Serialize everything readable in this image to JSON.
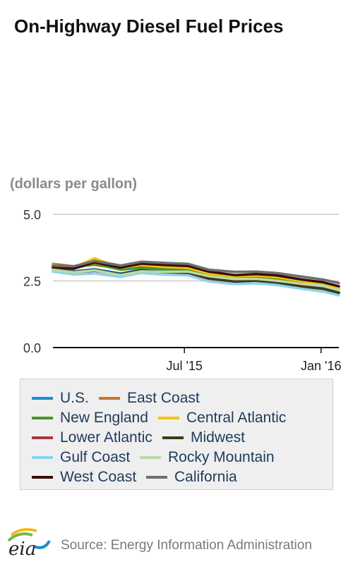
{
  "page": {
    "title": "On-Highway Diesel Fuel Prices",
    "unit_label": "(dollars per gallon)",
    "source": "Source: Energy Information Administration",
    "logo_text": "eia"
  },
  "chart_data": {
    "type": "line",
    "title": "On-Highway Diesel Fuel Prices",
    "ylabel": "(dollars per gallon)",
    "xlabel": "",
    "ylim": [
      0,
      5
    ],
    "yticks": [
      0,
      2.5,
      5
    ],
    "ytick_labels": [
      "0.0",
      "2.5",
      "5.0"
    ],
    "xticks": [
      {
        "date": "2015-07-01",
        "label": "Jul '15"
      },
      {
        "date": "2016-01-01",
        "label": "Jan '16"
      }
    ],
    "xrange": [
      "2015-01-05",
      "2016-01-25"
    ],
    "grid": "horizontal",
    "legend_position": "bottom",
    "x": [
      "2015-01-05",
      "2015-02-02",
      "2015-03-02",
      "2015-04-06",
      "2015-05-04",
      "2015-06-01",
      "2015-07-06",
      "2015-08-03",
      "2015-09-07",
      "2015-10-05",
      "2015-11-02",
      "2015-12-07",
      "2016-01-04",
      "2016-01-25"
    ],
    "series": [
      {
        "name": "U.S.",
        "color": "#1a8dd0",
        "values": [
          2.99,
          2.86,
          2.94,
          2.78,
          2.92,
          2.85,
          2.82,
          2.61,
          2.49,
          2.52,
          2.46,
          2.3,
          2.22,
          2.07
        ]
      },
      {
        "name": "East Coast",
        "color": "#c8742b",
        "values": [
          3.14,
          3.05,
          3.1,
          2.97,
          3.05,
          2.98,
          2.94,
          2.74,
          2.63,
          2.66,
          2.6,
          2.45,
          2.33,
          2.18
        ]
      },
      {
        "name": "New England",
        "color": "#48942a",
        "values": [
          3.06,
          2.98,
          3.15,
          2.92,
          3.0,
          2.94,
          2.9,
          2.7,
          2.6,
          2.63,
          2.58,
          2.45,
          2.36,
          2.23
        ]
      },
      {
        "name": "Central Atlantic",
        "color": "#f5c400",
        "values": [
          3.1,
          3.0,
          3.35,
          2.99,
          3.1,
          3.03,
          2.99,
          2.78,
          2.67,
          2.7,
          2.64,
          2.49,
          2.38,
          2.24
        ]
      },
      {
        "name": "Lower Atlantic",
        "color": "#a8353f",
        "values": [
          2.92,
          2.8,
          2.88,
          2.74,
          2.88,
          2.82,
          2.78,
          2.58,
          2.47,
          2.51,
          2.44,
          2.3,
          2.21,
          2.06
        ]
      },
      {
        "name": "Midwest",
        "color": "#3e3a17",
        "values": [
          2.96,
          2.84,
          2.92,
          2.75,
          2.9,
          2.83,
          2.8,
          2.6,
          2.48,
          2.51,
          2.44,
          2.28,
          2.2,
          2.05
        ]
      },
      {
        "name": "Gulf Coast",
        "color": "#8ad4f0",
        "values": [
          2.85,
          2.74,
          2.78,
          2.65,
          2.8,
          2.74,
          2.71,
          2.48,
          2.38,
          2.41,
          2.35,
          2.2,
          2.1,
          1.96
        ]
      },
      {
        "name": "Rocky Mountain",
        "color": "#bcd9a6",
        "values": [
          2.92,
          2.82,
          2.9,
          2.72,
          2.86,
          2.84,
          2.85,
          2.68,
          2.57,
          2.58,
          2.51,
          2.39,
          2.32,
          2.16
        ]
      },
      {
        "name": "West Coast",
        "color": "#3a0b0b",
        "values": [
          3.03,
          2.96,
          3.2,
          3.0,
          3.15,
          3.1,
          3.06,
          2.85,
          2.72,
          2.76,
          2.71,
          2.55,
          2.45,
          2.3
        ]
      },
      {
        "name": "California",
        "color": "#6e6e6e",
        "values": [
          3.08,
          3.05,
          3.25,
          3.08,
          3.22,
          3.18,
          3.14,
          2.92,
          2.84,
          2.85,
          2.8,
          2.66,
          2.55,
          2.42
        ]
      }
    ]
  }
}
